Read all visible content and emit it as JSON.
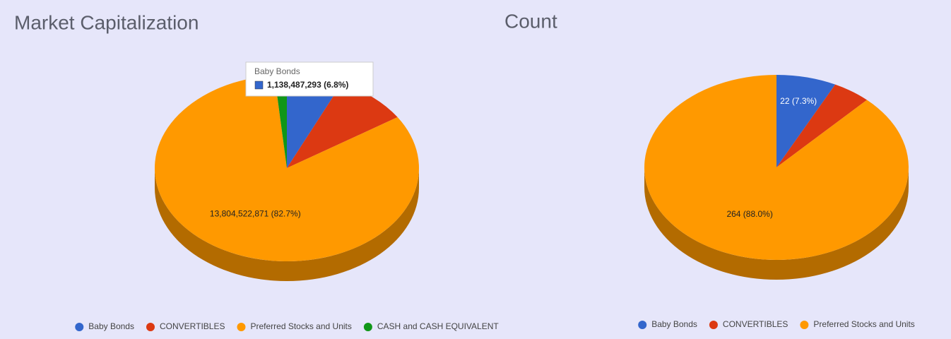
{
  "chart_data": [
    {
      "type": "pie3d",
      "title": "Market Capitalization",
      "categories": [
        "Baby Bonds",
        "CONVERTIBLES",
        "Preferred Stocks and Units",
        "CASH and CASH EQUIVALENT"
      ],
      "values": [
        1138487293,
        1500000000,
        13804522871,
        250000000
      ],
      "value_labels": [
        "1,138,487,293 (6.8%)",
        null,
        "13,804,522,871 (82.7%)",
        null
      ],
      "colors": [
        "#3366cc",
        "#dc3912",
        "#ff9900",
        "#109618"
      ],
      "tooltip": 0,
      "legend": "bottom"
    },
    {
      "type": "pie3d",
      "title": "Count",
      "categories": [
        "Baby Bonds",
        "CONVERTIBLES",
        "Preferred Stocks and Units"
      ],
      "values": [
        22,
        14,
        264
      ],
      "value_labels": [
        "22 (7.3%)",
        null,
        "264 (88.0%)"
      ],
      "colors": [
        "#3366cc",
        "#dc3912",
        "#ff9900"
      ],
      "legend": "bottom"
    }
  ]
}
